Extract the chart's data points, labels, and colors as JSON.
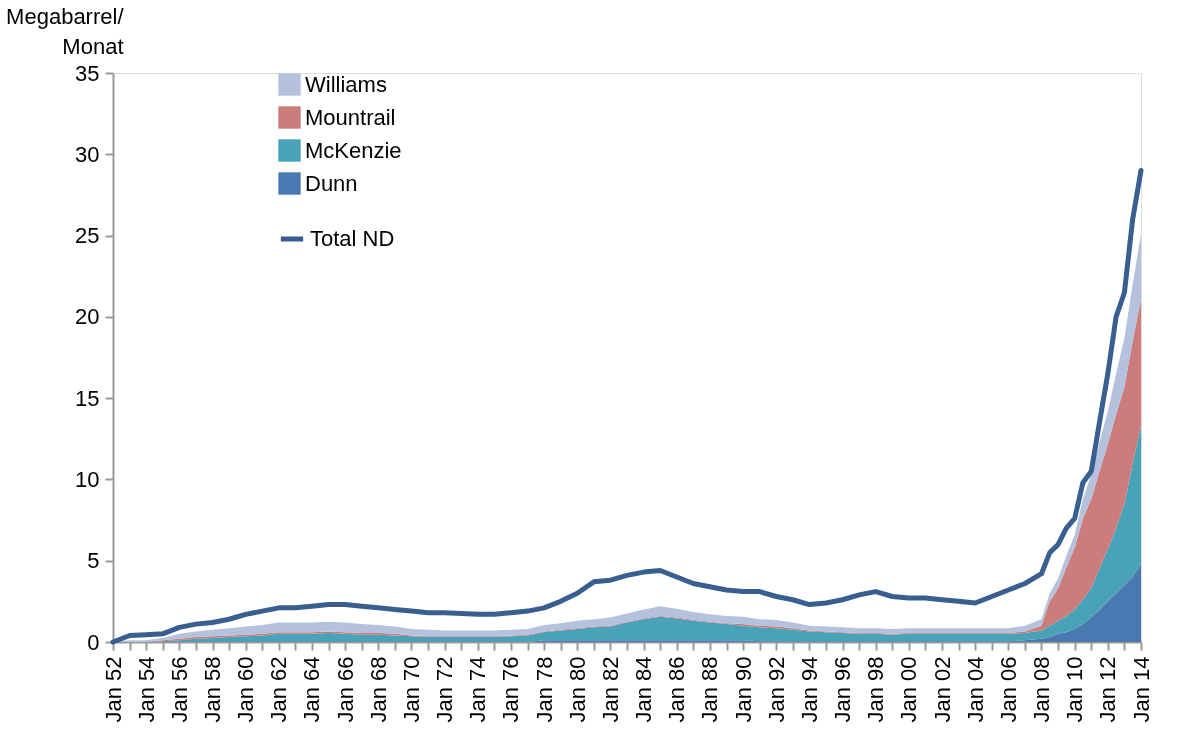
{
  "chart_data": {
    "type": "area",
    "stacked": true,
    "ylabel": "Megabarrel/\nMonat",
    "x": [
      "1952-01",
      "1953-01",
      "1954-01",
      "1955-01",
      "1956-01",
      "1957-01",
      "1958-01",
      "1959-01",
      "1960-01",
      "1961-01",
      "1962-01",
      "1963-01",
      "1964-01",
      "1965-01",
      "1966-01",
      "1967-01",
      "1968-01",
      "1969-01",
      "1970-01",
      "1971-01",
      "1972-01",
      "1973-01",
      "1974-01",
      "1975-01",
      "1976-01",
      "1977-01",
      "1978-01",
      "1979-01",
      "1980-01",
      "1981-01",
      "1982-01",
      "1983-01",
      "1984-01",
      "1985-01",
      "1986-01",
      "1987-01",
      "1988-01",
      "1989-01",
      "1990-01",
      "1991-01",
      "1992-01",
      "1993-01",
      "1994-01",
      "1995-01",
      "1996-01",
      "1997-01",
      "1998-01",
      "1999-01",
      "2000-01",
      "2001-01",
      "2002-01",
      "2003-01",
      "2004-01",
      "2005-01",
      "2006-01",
      "2007-01",
      "2008-01",
      "2008-07",
      "2009-01",
      "2009-07",
      "2010-01",
      "2010-07",
      "2011-01",
      "2011-07",
      "2012-01",
      "2012-07",
      "2013-01",
      "2013-07",
      "2014-01"
    ],
    "series": [
      {
        "name": "Dunn",
        "color": "#4a78b0",
        "values": [
          0,
          0,
          0,
          0,
          0,
          0,
          0,
          0,
          0,
          0,
          0,
          0,
          0,
          0,
          0,
          0,
          0,
          0,
          0,
          0,
          0,
          0,
          0,
          0,
          0,
          0,
          0.1,
          0.1,
          0.1,
          0.1,
          0.1,
          0.1,
          0.1,
          0.1,
          0.1,
          0.1,
          0.1,
          0.1,
          0.1,
          0.05,
          0.05,
          0.05,
          0.05,
          0.05,
          0.05,
          0.05,
          0.05,
          0.05,
          0.05,
          0.05,
          0.05,
          0.05,
          0.05,
          0.05,
          0.05,
          0.1,
          0.2,
          0.3,
          0.5,
          0.6,
          0.8,
          1.1,
          1.5,
          2.0,
          2.5,
          3.0,
          3.5,
          4.0,
          4.8
        ]
      },
      {
        "name": "McKenzie",
        "color": "#48a2b8",
        "values": [
          0,
          0,
          0,
          0.05,
          0.1,
          0.2,
          0.25,
          0.3,
          0.35,
          0.4,
          0.5,
          0.5,
          0.5,
          0.55,
          0.5,
          0.45,
          0.45,
          0.4,
          0.35,
          0.3,
          0.3,
          0.3,
          0.3,
          0.3,
          0.35,
          0.4,
          0.5,
          0.6,
          0.7,
          0.8,
          0.85,
          1.1,
          1.3,
          1.45,
          1.35,
          1.2,
          1.1,
          1.0,
          0.9,
          0.85,
          0.8,
          0.7,
          0.6,
          0.55,
          0.5,
          0.45,
          0.45,
          0.4,
          0.45,
          0.45,
          0.45,
          0.45,
          0.45,
          0.45,
          0.45,
          0.45,
          0.5,
          0.7,
          0.8,
          1.0,
          1.2,
          1.5,
          1.8,
          2.5,
          3.2,
          4.0,
          5.0,
          7.0,
          8.5
        ]
      },
      {
        "name": "Mountrail",
        "color": "#cc7c7a",
        "values": [
          0,
          0,
          0,
          0.05,
          0.1,
          0.1,
          0.1,
          0.1,
          0.1,
          0.1,
          0.1,
          0.1,
          0.1,
          0.1,
          0.1,
          0.1,
          0.1,
          0.1,
          0.05,
          0.05,
          0.05,
          0.05,
          0.05,
          0.05,
          0.05,
          0.05,
          0.05,
          0.05,
          0.05,
          0.05,
          0.05,
          0.05,
          0.05,
          0.05,
          0.05,
          0.05,
          0.05,
          0.05,
          0.1,
          0.1,
          0.1,
          0.1,
          0.05,
          0.05,
          0.05,
          0.05,
          0.05,
          0.05,
          0.05,
          0.05,
          0.05,
          0.05,
          0.05,
          0.05,
          0.05,
          0.1,
          0.3,
          1.5,
          2.0,
          3.0,
          3.8,
          5.0,
          5.5,
          6.0,
          6.5,
          7.0,
          7.2,
          7.5,
          7.8
        ]
      },
      {
        "name": "Williams",
        "color": "#b4c2de",
        "values": [
          0,
          0.1,
          0.1,
          0.15,
          0.3,
          0.35,
          0.4,
          0.45,
          0.5,
          0.55,
          0.6,
          0.6,
          0.6,
          0.6,
          0.6,
          0.55,
          0.5,
          0.45,
          0.4,
          0.4,
          0.35,
          0.35,
          0.35,
          0.35,
          0.35,
          0.35,
          0.4,
          0.4,
          0.45,
          0.45,
          0.5,
          0.5,
          0.55,
          0.6,
          0.55,
          0.5,
          0.45,
          0.45,
          0.45,
          0.4,
          0.4,
          0.35,
          0.3,
          0.3,
          0.3,
          0.3,
          0.3,
          0.3,
          0.3,
          0.3,
          0.3,
          0.3,
          0.3,
          0.3,
          0.3,
          0.35,
          0.4,
          0.5,
          0.6,
          0.7,
          0.8,
          1.2,
          1.5,
          1.8,
          2.0,
          2.5,
          3.0,
          3.5,
          4.0
        ]
      },
      {
        "name": "Total ND",
        "type": "line",
        "color": "#385f8f",
        "values": [
          0,
          0.4,
          0.45,
          0.5,
          0.9,
          1.1,
          1.2,
          1.4,
          1.7,
          1.9,
          2.1,
          2.1,
          2.2,
          2.3,
          2.3,
          2.2,
          2.1,
          2.0,
          1.9,
          1.8,
          1.8,
          1.75,
          1.7,
          1.7,
          1.8,
          1.9,
          2.1,
          2.5,
          3.0,
          3.7,
          3.8,
          4.1,
          4.3,
          4.4,
          4.0,
          3.6,
          3.4,
          3.2,
          3.1,
          3.1,
          2.8,
          2.6,
          2.3,
          2.4,
          2.6,
          2.9,
          3.1,
          2.8,
          2.7,
          2.7,
          2.6,
          2.5,
          2.4,
          2.8,
          3.2,
          3.6,
          4.2,
          5.5,
          6.0,
          7.0,
          7.6,
          9.8,
          10.5,
          13.5,
          16.5,
          20.0,
          21.5,
          26.0,
          29.0
        ]
      }
    ],
    "ylim": [
      0,
      35
    ],
    "yticks": [
      0,
      5,
      10,
      15,
      20,
      25,
      30,
      35
    ],
    "xlim": [
      "1952-01",
      "2014-01"
    ],
    "xticks": [
      {
        "value": "1952-01",
        "label": "Jan 52"
      },
      {
        "value": "1953-01",
        "label": null
      },
      {
        "value": "1954-01",
        "label": "Jan 54"
      },
      {
        "value": "1955-01",
        "label": null
      },
      {
        "value": "1956-01",
        "label": "Jan 56"
      },
      {
        "value": "1957-01",
        "label": null
      },
      {
        "value": "1958-01",
        "label": "Jan 58"
      },
      {
        "value": "1959-01",
        "label": null
      },
      {
        "value": "1960-01",
        "label": "Jan 60"
      },
      {
        "value": "1961-01",
        "label": null
      },
      {
        "value": "1962-01",
        "label": "Jan 62"
      },
      {
        "value": "1963-01",
        "label": null
      },
      {
        "value": "1964-01",
        "label": "Jan 64"
      },
      {
        "value": "1965-01",
        "label": null
      },
      {
        "value": "1966-01",
        "label": "Jan 66"
      },
      {
        "value": "1967-01",
        "label": null
      },
      {
        "value": "1968-01",
        "label": "Jan 68"
      },
      {
        "value": "1969-01",
        "label": null
      },
      {
        "value": "1970-01",
        "label": "Jan 70"
      },
      {
        "value": "1971-01",
        "label": null
      },
      {
        "value": "1972-01",
        "label": "Jan 72"
      },
      {
        "value": "1973-01",
        "label": null
      },
      {
        "value": "1974-01",
        "label": "Jan 74"
      },
      {
        "value": "1975-01",
        "label": null
      },
      {
        "value": "1976-01",
        "label": "Jan 76"
      },
      {
        "value": "1977-01",
        "label": null
      },
      {
        "value": "1978-01",
        "label": "Jan 78"
      },
      {
        "value": "1979-01",
        "label": null
      },
      {
        "value": "1980-01",
        "label": "Jan 80"
      },
      {
        "value": "1981-01",
        "label": null
      },
      {
        "value": "1982-01",
        "label": "Jan 82"
      },
      {
        "value": "1983-01",
        "label": null
      },
      {
        "value": "1984-01",
        "label": "Jan 84"
      },
      {
        "value": "1985-01",
        "label": null
      },
      {
        "value": "1986-01",
        "label": "Jan 86"
      },
      {
        "value": "1987-01",
        "label": null
      },
      {
        "value": "1988-01",
        "label": "Jan 88"
      },
      {
        "value": "1989-01",
        "label": null
      },
      {
        "value": "1990-01",
        "label": "Jan 90"
      },
      {
        "value": "1991-01",
        "label": null
      },
      {
        "value": "1992-01",
        "label": "Jan 92"
      },
      {
        "value": "1993-01",
        "label": null
      },
      {
        "value": "1994-01",
        "label": "Jan 94"
      },
      {
        "value": "1995-01",
        "label": null
      },
      {
        "value": "1996-01",
        "label": "Jan 96"
      },
      {
        "value": "1997-01",
        "label": null
      },
      {
        "value": "1998-01",
        "label": "Jan 98"
      },
      {
        "value": "1999-01",
        "label": null
      },
      {
        "value": "2000-01",
        "label": "Jan 00"
      },
      {
        "value": "2001-01",
        "label": null
      },
      {
        "value": "2002-01",
        "label": "Jan 02"
      },
      {
        "value": "2003-01",
        "label": null
      },
      {
        "value": "2004-01",
        "label": "Jan 04"
      },
      {
        "value": "2005-01",
        "label": null
      },
      {
        "value": "2006-01",
        "label": "Jan 06"
      },
      {
        "value": "2007-01",
        "label": null
      },
      {
        "value": "2008-01",
        "label": "Jan 08"
      },
      {
        "value": "2009-01",
        "label": null
      },
      {
        "value": "2010-01",
        "label": "Jan 10"
      },
      {
        "value": "2011-01",
        "label": null
      },
      {
        "value": "2012-01",
        "label": "Jan 12"
      },
      {
        "value": "2013-01",
        "label": null
      },
      {
        "value": "2014-01",
        "label": "Jan 14"
      }
    ],
    "legend": "top left",
    "grid": false
  }
}
